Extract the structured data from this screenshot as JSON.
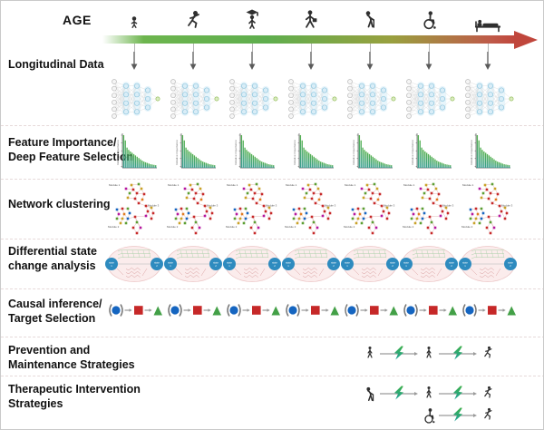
{
  "header": {
    "age_label": "AGE",
    "stages": [
      {
        "icon": "baby-icon"
      },
      {
        "icon": "child-running-icon"
      },
      {
        "icon": "graduate-icon"
      },
      {
        "icon": "adult-briefcase-icon"
      },
      {
        "icon": "elderly-cane-icon"
      },
      {
        "icon": "wheelchair-icon"
      },
      {
        "icon": "bed-patient-icon"
      }
    ],
    "timeline_colors": {
      "start": "#5fae4e",
      "middle": "#99a03f",
      "end": "#c0463c"
    }
  },
  "columns": {
    "count": 7
  },
  "rows": [
    {
      "id": "longitudinal-data",
      "label": "Longitudinal Data",
      "graphic": "neural-network"
    },
    {
      "id": "feature-importance",
      "label": "Feature Importance/\nDeep Feature Selection",
      "graphic": "bar-chart"
    },
    {
      "id": "network-clustering",
      "label": "Network clustering",
      "graphic": "cluster-graph"
    },
    {
      "id": "differential-state",
      "label": "Differential state\nchange analysis",
      "graphic": "state-ellipse"
    },
    {
      "id": "causal-inference",
      "label": "Causal inference/\nTarget Selection",
      "graphic": "causal-chain"
    },
    {
      "id": "prevention",
      "label": "Prevention and\nMaintenance Strategies",
      "graphic": "strategy-sequence"
    },
    {
      "id": "therapeutic",
      "label": "Therapeutic Intervention\nStrategies",
      "graphic": "strategy-sequence"
    }
  ],
  "chart_data": {
    "type": "bar",
    "title": "",
    "xlabel": "",
    "ylabel": "Relative importance",
    "values": [
      1.0,
      0.84,
      0.62,
      0.55,
      0.5,
      0.46,
      0.42,
      0.38,
      0.34,
      0.3,
      0.26,
      0.22,
      0.19,
      0.17,
      0.15,
      0.13,
      0.11,
      0.1,
      0.09,
      0.08
    ],
    "bar_color_top": "#56b14f",
    "bar_color_bottom": "#3a9f93",
    "repeat": 7
  },
  "graphics": {
    "neural_network": {
      "layers": [
        6,
        4,
        4,
        3,
        1
      ],
      "input_color": "#f5f5f5",
      "hidden_color": "#d9edf7",
      "output_color": "#dcedc2",
      "repeat": 7
    },
    "cluster": {
      "module_labels": [
        "Module 1",
        "Module 3",
        "Module 2"
      ],
      "palette": [
        "#c62828",
        "#5a9e32",
        "#c9a227",
        "#1565c0",
        "#b5179e",
        "#e07b20"
      ],
      "edge_color": "#dca8a8",
      "repeat": 7
    },
    "state": {
      "labels": [
        "state 1",
        "state 2"
      ],
      "circle_color": "#2e8bbf",
      "ellipse_fill": "#fbecec",
      "top_mesh_color": "#a3cfa3",
      "bottom_mesh_color": "#d89c9c",
      "repeat": 7
    },
    "causal": {
      "circle_color": "#1565c0",
      "square_color": "#c62828",
      "triangle_color": "#43a047",
      "arrow_color": "#9a9a9a",
      "repeat": 7
    },
    "bolt_colors": {
      "top": "#3cae49",
      "bottom": "#1fa39b"
    }
  },
  "strategies": {
    "prevention": {
      "steps": [
        {
          "icon": "person-walking-icon",
          "col": 5
        },
        {
          "icon": "person-walking-icon",
          "col": 6
        },
        {
          "icon": "person-running-icon",
          "col": 7
        }
      ]
    },
    "therapeutic": [
      {
        "steps": [
          {
            "icon": "elderly-cane-icon",
            "col": 5
          },
          {
            "icon": "person-walking-icon",
            "col": 6
          },
          {
            "icon": "person-running-icon",
            "col": 7
          }
        ]
      },
      {
        "steps": [
          {
            "icon": "wheelchair-icon",
            "col": 6
          },
          {
            "icon": "person-running-icon",
            "col": 7
          }
        ]
      }
    ]
  }
}
